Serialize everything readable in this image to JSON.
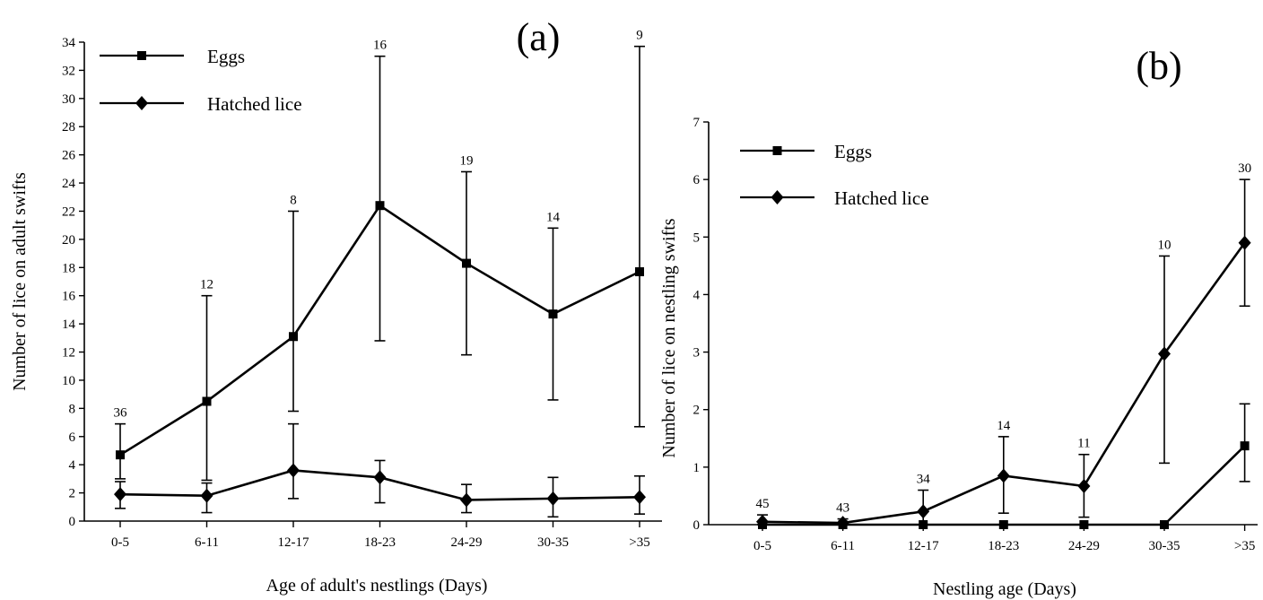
{
  "chart_data": [
    {
      "type": "line",
      "panel_label": "(a)",
      "xlabel": "Age of adult's nestlings (Days)",
      "ylabel": "Number of lice on adult swifts",
      "categories": [
        "0-5",
        "6-11",
        "12-17",
        "18-23",
        "24-29",
        "30-35",
        ">35"
      ],
      "ylim": [
        0,
        34
      ],
      "yticks": [
        0,
        2,
        4,
        6,
        8,
        10,
        12,
        14,
        16,
        18,
        20,
        22,
        24,
        26,
        28,
        30,
        32,
        34
      ],
      "sample_sizes": [
        "36",
        "12",
        "8",
        "16",
        "19",
        "14",
        "9"
      ],
      "legend_position": "top-left",
      "series": [
        {
          "name": "Eggs",
          "marker": "square",
          "values": [
            4.7,
            8.5,
            13.1,
            22.4,
            18.3,
            14.7,
            17.7
          ],
          "error_low": [
            3.0,
            2.9,
            7.8,
            12.8,
            11.8,
            8.6,
            6.7
          ],
          "error_high": [
            6.9,
            16.0,
            22.0,
            33.0,
            24.8,
            20.8,
            33.7
          ]
        },
        {
          "name": "Hatched lice",
          "marker": "diamond",
          "values": [
            1.9,
            1.8,
            3.6,
            3.1,
            1.5,
            1.6,
            1.7
          ],
          "error_low": [
            0.9,
            0.6,
            1.6,
            1.3,
            0.6,
            0.3,
            0.5
          ],
          "error_high": [
            2.8,
            2.7,
            6.9,
            4.3,
            2.6,
            3.1,
            3.2
          ]
        }
      ]
    },
    {
      "type": "line",
      "panel_label": "(b)",
      "xlabel": "Nestling age (Days)",
      "ylabel": "Number of lice on nestling swifts",
      "categories": [
        "0-5",
        "6-11",
        "12-17",
        "18-23",
        "24-29",
        "30-35",
        ">35"
      ],
      "ylim": [
        0,
        7
      ],
      "yticks": [
        0,
        1,
        2,
        3,
        4,
        5,
        6,
        7
      ],
      "sample_sizes": [
        "45",
        "43",
        "34",
        "14",
        "11",
        "10",
        "30"
      ],
      "legend_position": "top-left",
      "series": [
        {
          "name": "Eggs",
          "marker": "square",
          "values": [
            0,
            0,
            0,
            0,
            0,
            0,
            1.37
          ],
          "error_low": [
            null,
            null,
            null,
            null,
            null,
            null,
            0.75
          ],
          "error_high": [
            null,
            null,
            null,
            null,
            null,
            null,
            2.1
          ]
        },
        {
          "name": "Hatched lice",
          "marker": "diamond",
          "values": [
            0.05,
            0.03,
            0.23,
            0.85,
            0.67,
            2.97,
            4.9
          ],
          "error_low": [
            0.0,
            0.0,
            0.0,
            0.2,
            0.13,
            1.07,
            3.8
          ],
          "error_high": [
            0.17,
            0.1,
            0.6,
            1.53,
            1.22,
            4.67,
            6.0
          ]
        }
      ]
    }
  ]
}
